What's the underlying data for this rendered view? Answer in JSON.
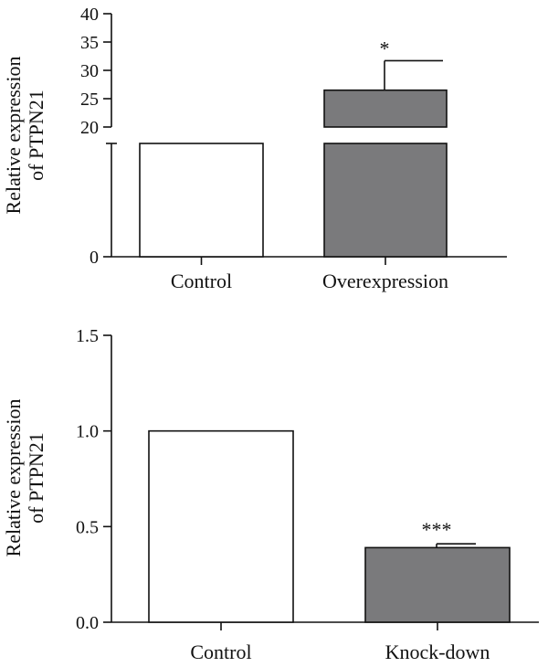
{
  "chart_data": [
    {
      "type": "bar",
      "ylabel": "Relative expression of PTPN21",
      "ylabel_lines": [
        "Relative expression",
        "of PTPN21"
      ],
      "categories": [
        "Control",
        "Overexpression"
      ],
      "values": [
        1,
        26.5
      ],
      "error": [
        0,
        5.2
      ],
      "significance": [
        "",
        "*"
      ],
      "bar_colors": [
        "#ffffff",
        "#7a7a7c"
      ],
      "axis_break": {
        "lower_ticks": [
          "0"
        ],
        "upper_range": [
          20,
          40
        ]
      },
      "yticks": [
        "0",
        "20",
        "25",
        "30",
        "35",
        "40"
      ]
    },
    {
      "type": "bar",
      "ylabel": "Relative expression of PTPN21",
      "ylabel_lines": [
        "Relative expression",
        "of PTPN21"
      ],
      "categories": [
        "Control",
        "Knock-down"
      ],
      "values": [
        1.0,
        0.39
      ],
      "error": [
        0,
        0.02
      ],
      "significance": [
        "",
        "***"
      ],
      "bar_colors": [
        "#ffffff",
        "#7a7a7c"
      ],
      "ylim": [
        0,
        1.5
      ],
      "yticks": [
        "0.0",
        "0.5",
        "1.0",
        "1.5"
      ]
    }
  ]
}
